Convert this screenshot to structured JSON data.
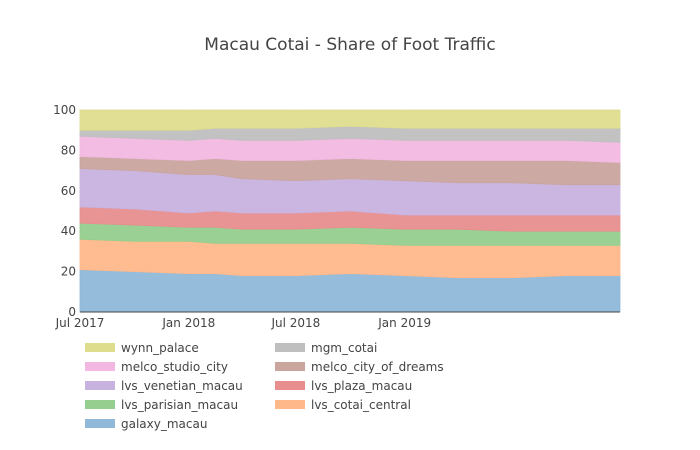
{
  "chart_data": {
    "type": "area",
    "stacked": true,
    "percent": true,
    "title": "Macau Cotai - Share of Foot Traffic",
    "xlabel": "",
    "ylabel": "",
    "x_range": [
      "2017-07-01",
      "2019-12-31"
    ],
    "ylim": [
      0,
      100
    ],
    "x_ticks": [
      {
        "date": "2017-07-01",
        "label": "Jul 2017"
      },
      {
        "date": "2018-01-01",
        "label": "Jan 2018"
      },
      {
        "date": "2018-07-01",
        "label": "Jul 2018"
      },
      {
        "date": "2019-01-01",
        "label": "Jan 2019"
      }
    ],
    "y_ticks": [
      0,
      20,
      40,
      60,
      80,
      100
    ],
    "grid": true,
    "legend_position": "bottom",
    "dates": [
      "2017-07-01",
      "2017-10-01",
      "2018-01-01",
      "2018-02-15",
      "2018-04-01",
      "2018-07-01",
      "2018-10-01",
      "2019-01-01",
      "2019-04-01",
      "2019-07-01",
      "2019-10-01",
      "2019-12-31"
    ],
    "series": [
      {
        "name": "galaxy_macau",
        "color": "#8fb8d9",
        "values": [
          21,
          20,
          19,
          19,
          18,
          18,
          19,
          18,
          17,
          17,
          18,
          18
        ]
      },
      {
        "name": "lvs_cotai_central",
        "color": "#ffb88a",
        "values": [
          15,
          15,
          16,
          15,
          16,
          16,
          15,
          15,
          16,
          16,
          15,
          15
        ]
      },
      {
        "name": "lvs_parisian_macau",
        "color": "#95ce8e",
        "values": [
          8,
          8,
          7,
          8,
          7,
          7,
          8,
          8,
          8,
          7,
          7,
          7
        ]
      },
      {
        "name": "lvs_plaza_macau",
        "color": "#e88e8e",
        "values": [
          8,
          8,
          7,
          8,
          8,
          8,
          8,
          7,
          7,
          8,
          8,
          8
        ]
      },
      {
        "name": "lvs_venetian_macau",
        "color": "#c8b2df",
        "values": [
          19,
          19,
          19,
          18,
          17,
          16,
          16,
          17,
          16,
          16,
          15,
          15
        ]
      },
      {
        "name": "melco_city_of_dreams",
        "color": "#c9a59e",
        "values": [
          6,
          6,
          7,
          8,
          9,
          10,
          10,
          10,
          11,
          11,
          12,
          11
        ]
      },
      {
        "name": "melco_studio_city",
        "color": "#f2b8e2",
        "values": [
          10,
          10,
          10,
          10,
          10,
          10,
          10,
          10,
          10,
          10,
          10,
          10
        ]
      },
      {
        "name": "mgm_cotai",
        "color": "#bfbfbf",
        "values": [
          3,
          4,
          5,
          5,
          6,
          6,
          6,
          6,
          6,
          6,
          6,
          7
        ]
      },
      {
        "name": "wynn_palace",
        "color": "#dedd8e",
        "values": [
          10,
          10,
          10,
          9,
          9,
          9,
          8,
          9,
          9,
          9,
          9,
          9
        ]
      }
    ],
    "legend_order": [
      "wynn_palace",
      "mgm_cotai",
      "melco_studio_city",
      "melco_city_of_dreams",
      "lvs_venetian_macau",
      "lvs_plaza_macau",
      "lvs_parisian_macau",
      "lvs_cotai_central",
      "galaxy_macau"
    ]
  }
}
